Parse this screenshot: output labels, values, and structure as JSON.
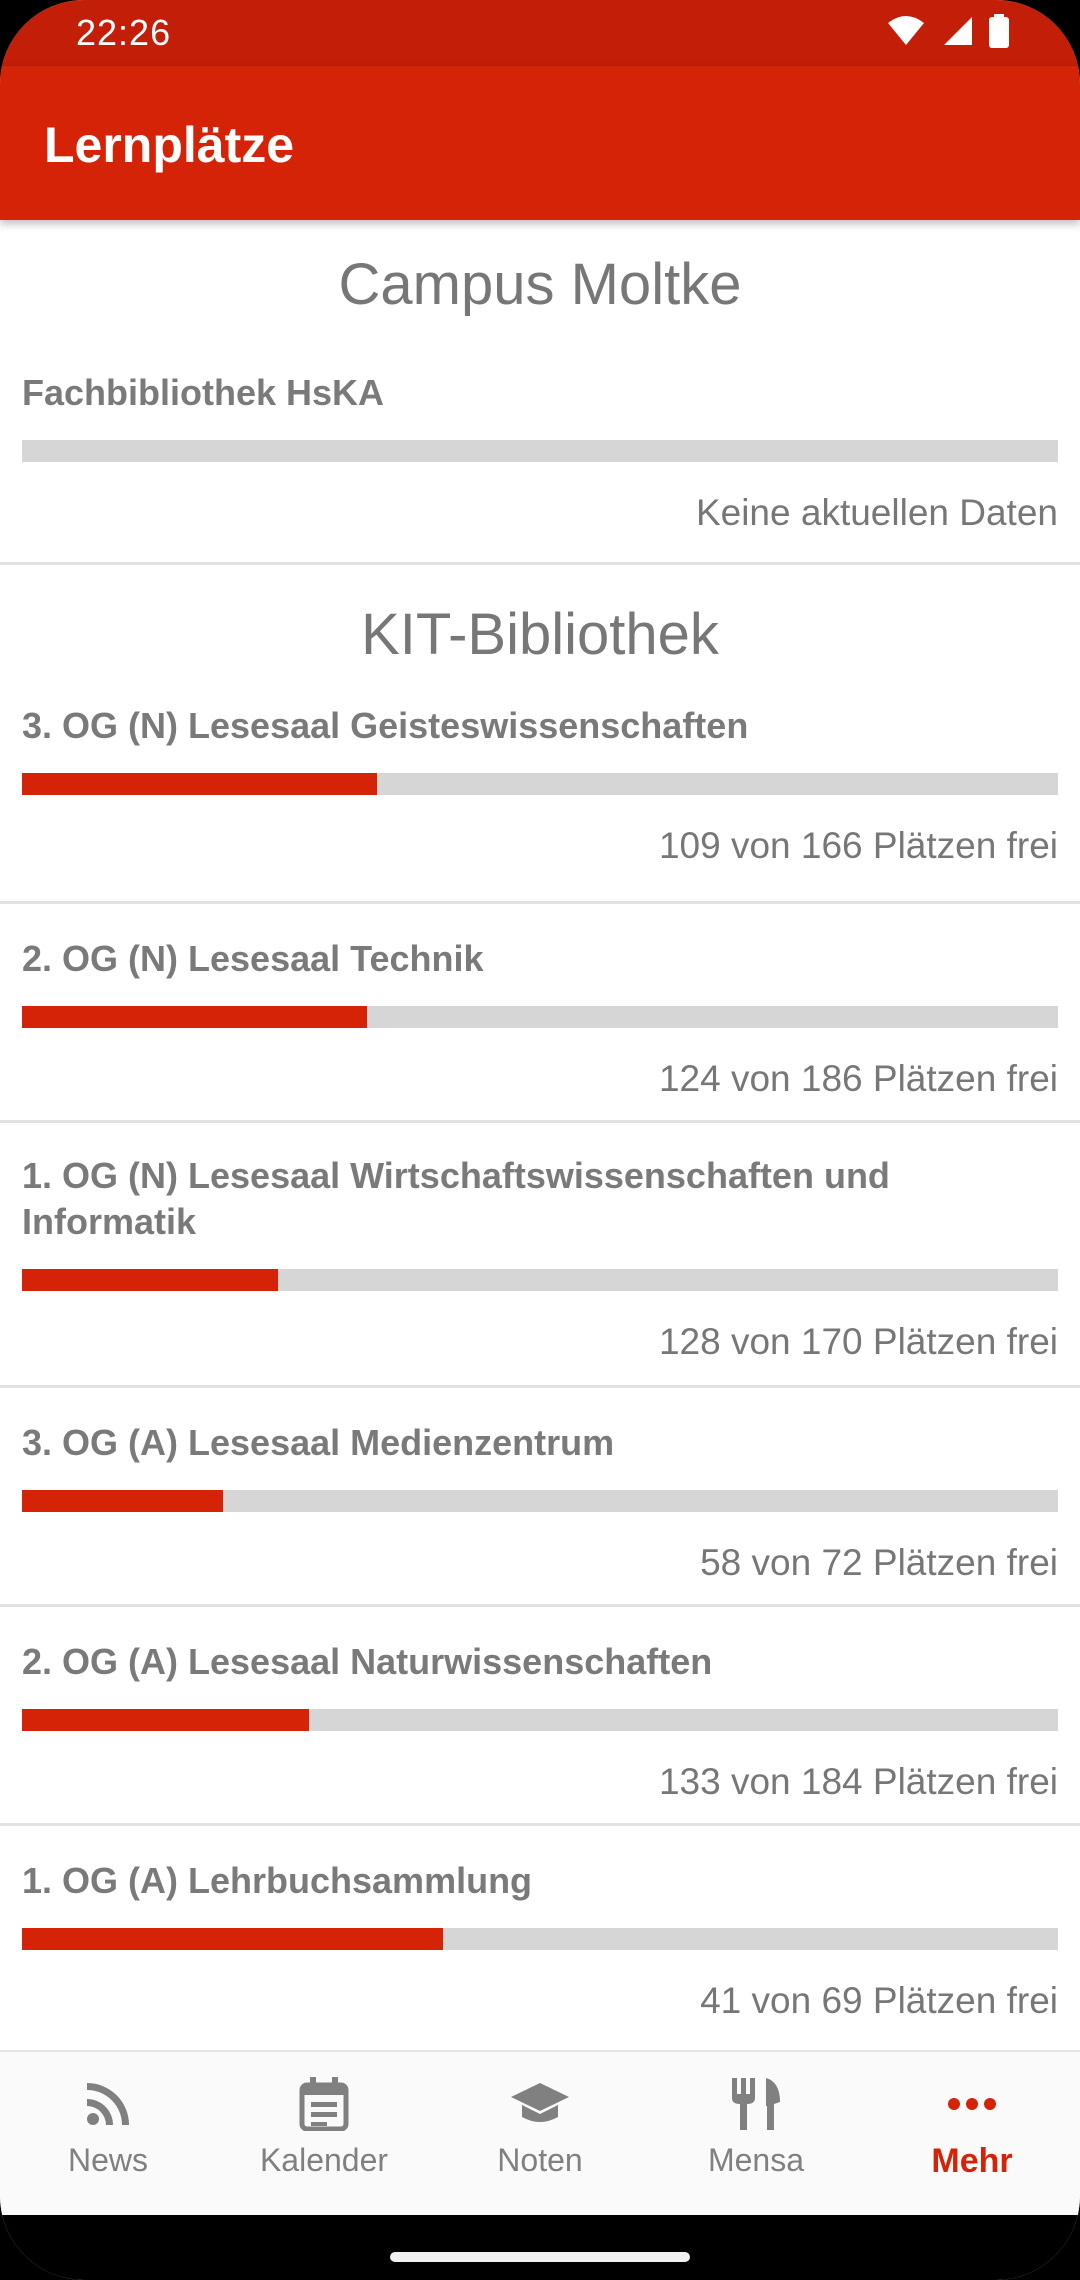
{
  "status": {
    "time": "22:26"
  },
  "app": {
    "title": "Lernplätze"
  },
  "sections": [
    {
      "title": "Campus Moltke",
      "libraries": [
        {
          "name": "Fachbibliothek HsKA",
          "occupied_fraction": 0,
          "status": "Keine aktuellen Daten"
        }
      ]
    },
    {
      "title": "KIT-Bibliothek",
      "libraries": [
        {
          "name": "3. OG (N) Lesesaal Geisteswissenschaften",
          "occupied_fraction": 0.343,
          "status": "109 von 166 Plätzen frei"
        },
        {
          "name": "2. OG (N) Lesesaal Technik",
          "occupied_fraction": 0.333,
          "status": "124 von 186 Plätzen frei"
        },
        {
          "name": "1. OG (N) Lesesaal Wirtschaftswissenschaften und Informatik",
          "occupied_fraction": 0.247,
          "status": "128 von 170 Plätzen frei"
        },
        {
          "name": "3. OG (A) Lesesaal Medienzentrum",
          "occupied_fraction": 0.194,
          "status": "58 von 72 Plätzen frei"
        },
        {
          "name": "2. OG (A) Lesesaal Naturwissenschaften",
          "occupied_fraction": 0.277,
          "status": "133 von 184 Plätzen frei"
        },
        {
          "name": "1. OG (A) Lehrbuchsammlung",
          "occupied_fraction": 0.406,
          "status": "41 von 69 Plätzen frei"
        }
      ]
    }
  ],
  "nav": {
    "items": [
      {
        "label": "News",
        "icon": "rss-icon",
        "active": false
      },
      {
        "label": "Kalender",
        "icon": "calendar-icon",
        "active": false
      },
      {
        "label": "Noten",
        "icon": "graduation-cap-icon",
        "active": false
      },
      {
        "label": "Mensa",
        "icon": "fork-knife-icon",
        "active": false
      },
      {
        "label": "Mehr",
        "icon": "more-dots-icon",
        "active": true
      }
    ]
  },
  "colors": {
    "accent": "#d52308",
    "statusbar": "#c21e08",
    "bar_track": "#d6d6d6",
    "text_gray": "#777777"
  }
}
